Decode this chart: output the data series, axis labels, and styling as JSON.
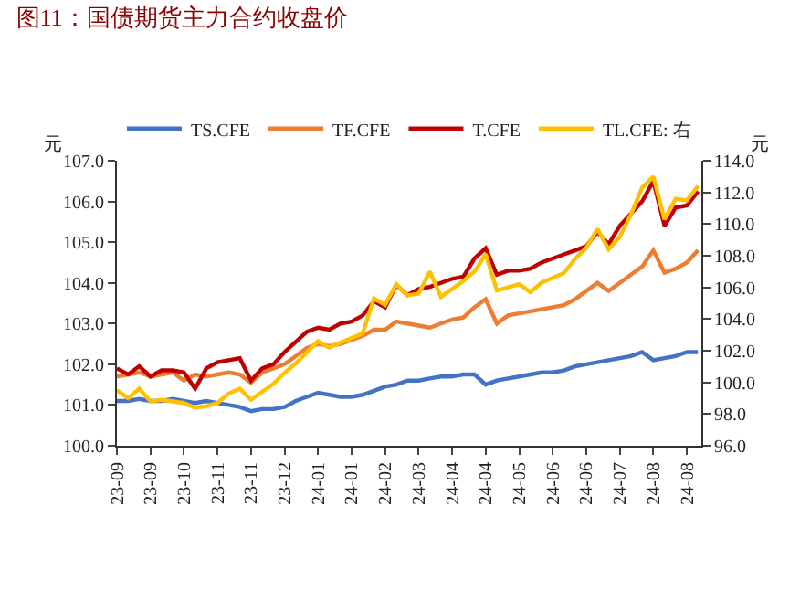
{
  "chart_data": {
    "type": "line",
    "title": "图11：国债期货主力合约收盘价",
    "ylabel": "元",
    "y2label": "元",
    "categories": [
      "23-09",
      null,
      null,
      "23-09",
      null,
      null,
      "23-10",
      null,
      null,
      "23-11",
      null,
      null,
      "23-11",
      null,
      null,
      "23-12",
      null,
      null,
      "24-01",
      null,
      null,
      "24-01",
      null,
      null,
      "24-02",
      null,
      null,
      "24-03",
      null,
      null,
      "24-04",
      null,
      null,
      "24-04",
      null,
      null,
      "24-05",
      null,
      null,
      "24-06",
      null,
      null,
      "24-06",
      null,
      null,
      "24-07",
      null,
      null,
      "24-08",
      null,
      null,
      "24-08",
      null
    ],
    "series": [
      {
        "name": "TS.CFE",
        "color": "#4472c4",
        "values": [
          101.1,
          101.1,
          101.15,
          101.1,
          101.1,
          101.15,
          101.1,
          101.05,
          101.1,
          101.05,
          101.0,
          100.95,
          100.85,
          100.9,
          100.9,
          100.95,
          101.1,
          101.2,
          101.3,
          101.25,
          101.2,
          101.2,
          101.25,
          101.35,
          101.45,
          101.5,
          101.6,
          101.6,
          101.65,
          101.7,
          101.7,
          101.75,
          101.75,
          101.5,
          101.6,
          101.65,
          101.7,
          101.75,
          101.8,
          101.8,
          101.85,
          101.95,
          102.0,
          102.05,
          102.1,
          102.15,
          102.2,
          102.3,
          102.1,
          102.15,
          102.2,
          102.3,
          102.3
        ]
      },
      {
        "name": "TF.CFE",
        "color": "#ed7d31",
        "values": [
          101.7,
          101.75,
          101.8,
          101.7,
          101.75,
          101.8,
          101.6,
          101.75,
          101.7,
          101.75,
          101.8,
          101.75,
          101.55,
          101.8,
          101.9,
          102.0,
          102.2,
          102.4,
          102.5,
          102.45,
          102.5,
          102.6,
          102.7,
          102.85,
          102.85,
          103.05,
          103.0,
          102.95,
          102.9,
          103.0,
          103.1,
          103.15,
          103.4,
          103.6,
          103.0,
          103.2,
          103.25,
          103.3,
          103.35,
          103.4,
          103.45,
          103.6,
          103.8,
          104.0,
          103.8,
          104.0,
          104.2,
          104.4,
          104.8,
          104.25,
          104.35,
          104.5,
          104.8
        ]
      },
      {
        "name": "T.CFE",
        "color": "#c00000",
        "values": [
          101.9,
          101.75,
          101.95,
          101.7,
          101.85,
          101.85,
          101.8,
          101.4,
          101.9,
          102.05,
          102.1,
          102.15,
          101.6,
          101.9,
          102.0,
          102.3,
          102.55,
          102.8,
          102.9,
          102.85,
          103.0,
          103.05,
          103.2,
          103.55,
          103.4,
          103.95,
          103.7,
          103.85,
          103.9,
          104.0,
          104.1,
          104.15,
          104.6,
          104.85,
          104.2,
          104.3,
          104.3,
          104.35,
          104.5,
          104.6,
          104.7,
          104.8,
          104.9,
          105.25,
          104.95,
          105.4,
          105.7,
          106.0,
          106.5,
          105.4,
          105.85,
          105.9,
          106.25
        ]
      },
      {
        "name": "TL.CFE: 右",
        "color": "#ffc000",
        "axis": "y2",
        "values": [
          99.5,
          99.0,
          99.6,
          98.8,
          98.9,
          98.8,
          98.7,
          98.4,
          98.5,
          98.7,
          99.3,
          99.6,
          98.9,
          99.4,
          99.9,
          100.6,
          101.2,
          101.9,
          102.6,
          102.2,
          102.5,
          102.8,
          103.1,
          105.3,
          104.9,
          106.2,
          105.5,
          105.6,
          107.0,
          105.4,
          105.9,
          106.4,
          107.0,
          108.1,
          105.8,
          106.0,
          106.2,
          105.7,
          106.3,
          106.6,
          106.9,
          107.8,
          108.5,
          109.7,
          108.4,
          109.2,
          110.6,
          112.3,
          113.0,
          110.3,
          111.6,
          111.5,
          112.4
        ]
      }
    ],
    "ylim": [
      100,
      107
    ],
    "yticks": [
      {
        "value": 100,
        "label": "100.0"
      },
      {
        "value": 101,
        "label": "101.0"
      },
      {
        "value": 102,
        "label": "102.0"
      },
      {
        "value": 103,
        "label": "103.0"
      },
      {
        "value": 104,
        "label": "104.0"
      },
      {
        "value": 105,
        "label": "105.0"
      },
      {
        "value": 106,
        "label": "106.0"
      },
      {
        "value": 107,
        "label": "107.0"
      }
    ],
    "y2lim": [
      96,
      114
    ],
    "y2ticks": [
      {
        "value": 96,
        "label": "96.0"
      },
      {
        "value": 98,
        "label": "98.0"
      },
      {
        "value": 100,
        "label": "100.0"
      },
      {
        "value": 102,
        "label": "102.0"
      },
      {
        "value": 104,
        "label": "104.0"
      },
      {
        "value": 106,
        "label": "106.0"
      },
      {
        "value": 108,
        "label": "108.0"
      },
      {
        "value": 110,
        "label": "110.0"
      },
      {
        "value": 112,
        "label": "112.0"
      },
      {
        "value": 114,
        "label": "114.0"
      }
    ],
    "legend": "top",
    "marker": "none",
    "line_style": "solid"
  }
}
